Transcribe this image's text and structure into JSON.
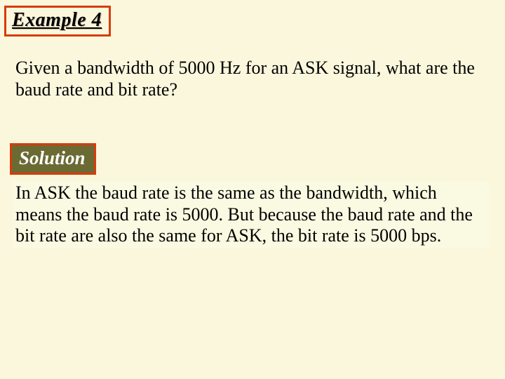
{
  "example": {
    "label": "Example 4",
    "border_color": "#d63c0a",
    "text_color": "#000000"
  },
  "question": {
    "text": "Given a bandwidth of 5000 Hz for an ASK signal, what are the baud rate and bit rate?"
  },
  "solution": {
    "label": "Solution",
    "border_color": "#d63c0a",
    "fill_color": "#6b6a33",
    "text_color": "#ffffff"
  },
  "answer": {
    "text": "In ASK the baud rate is the same as the bandwidth, which means the baud rate is 5000. But because the baud rate and the bit rate are also the same for ASK, the bit rate is 5000 bps.",
    "background_color": "#fafae2"
  },
  "page": {
    "background_color": "#fbf7dc"
  }
}
